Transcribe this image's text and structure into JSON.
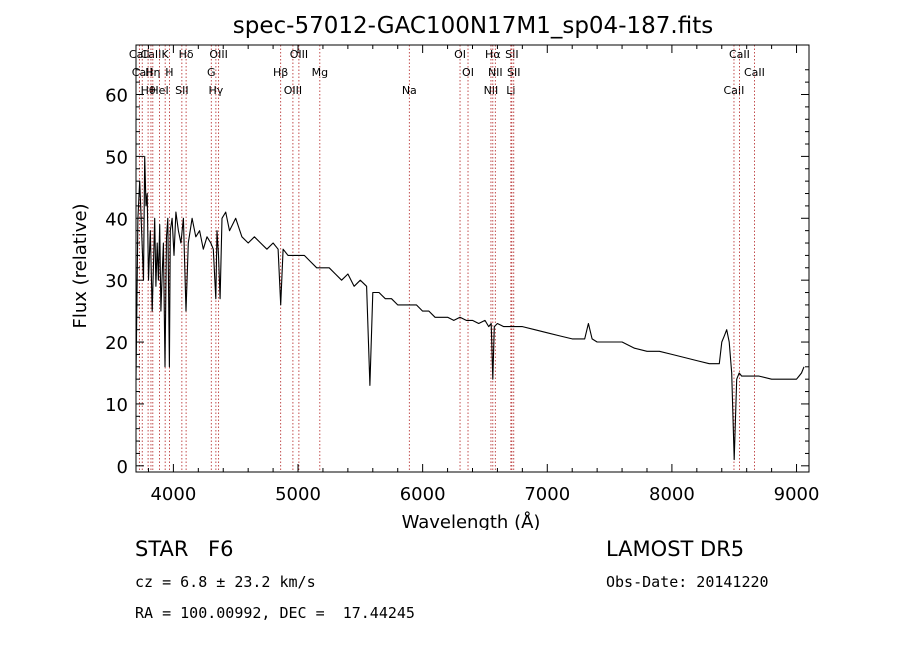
{
  "chart_data": {
    "type": "line",
    "title": "spec-57012-GAC100N17M1_sp04-187.fits",
    "xlabel": "Wavelength (Å)",
    "ylabel": "Flux (relative)",
    "xlim": [
      3700,
      9100
    ],
    "ylim": [
      -1,
      68
    ],
    "xticks": [
      4000,
      5000,
      6000,
      7000,
      8000,
      9000
    ],
    "xtick_labels": [
      "4000",
      "5000",
      "6000",
      "7000",
      "8000",
      "9000"
    ],
    "yticks": [
      0,
      10,
      20,
      30,
      40,
      50,
      60
    ],
    "ytick_labels": [
      "0",
      "10",
      "20",
      "30",
      "40",
      "50",
      "60"
    ],
    "series": [
      {
        "x": [
          3700,
          3715,
          3730,
          3745,
          3760,
          3770,
          3780,
          3790,
          3800,
          3815,
          3830,
          3840,
          3850,
          3860,
          3870,
          3880,
          3890,
          3900,
          3910,
          3920,
          3933,
          3945,
          3955,
          3968,
          3975,
          3990,
          4005,
          4020,
          4040,
          4060,
          4080,
          4101,
          4120,
          4150,
          4180,
          4210,
          4240,
          4270,
          4300,
          4320,
          4340,
          4350,
          4362,
          4375,
          4390,
          4420,
          4450,
          4500,
          4550,
          4600,
          4650,
          4700,
          4750,
          4800,
          4840,
          4861,
          4880,
          4920,
          4960,
          5000,
          5050,
          5100,
          5150,
          5200,
          5250,
          5300,
          5350,
          5400,
          5450,
          5500,
          5550,
          5577,
          5600,
          5650,
          5700,
          5750,
          5800,
          5850,
          5890,
          5950,
          6000,
          6050,
          6100,
          6150,
          6200,
          6250,
          6300,
          6350,
          6400,
          6450,
          6500,
          6530,
          6550,
          6563,
          6575,
          6600,
          6650,
          6700,
          6750,
          6800,
          6900,
          7000,
          7100,
          7200,
          7300,
          7330,
          7360,
          7400,
          7500,
          7600,
          7700,
          7800,
          7900,
          8000,
          8100,
          8200,
          8300,
          8380,
          8400,
          8420,
          8440,
          8460,
          8480,
          8500,
          8520,
          8540,
          8560,
          8600,
          8700,
          8800,
          8900,
          9000,
          9020,
          9040,
          9060
        ],
        "y": [
          14,
          40,
          46,
          38,
          30,
          50,
          42,
          44,
          30,
          38,
          25,
          32,
          40,
          29,
          36,
          30,
          39,
          25,
          31,
          36,
          16,
          37,
          40,
          16,
          38,
          40,
          34,
          41,
          38,
          36,
          40,
          25,
          36,
          40,
          37,
          38,
          35,
          37,
          36,
          35,
          27,
          38,
          34,
          27,
          40,
          41,
          38,
          40,
          37,
          36,
          37,
          36,
          35,
          36,
          35,
          26,
          35,
          34,
          34,
          34,
          34,
          33,
          32,
          32,
          32,
          31,
          30,
          31,
          29,
          30,
          29,
          13,
          28,
          28,
          27,
          27,
          26,
          26,
          26,
          26,
          25,
          25,
          24,
          24,
          24,
          23.5,
          24,
          23.5,
          23.5,
          23,
          23.5,
          22.5,
          23,
          14,
          22.5,
          23,
          22.5,
          22.5,
          22.5,
          22.5,
          22,
          21.5,
          21,
          20.5,
          20.5,
          23,
          20.5,
          20,
          20,
          20,
          19,
          18.5,
          18.5,
          18,
          17.5,
          17,
          16.5,
          16.5,
          20,
          21,
          22,
          20,
          15,
          1,
          14,
          15,
          14.5,
          14.5,
          14.5,
          14,
          14,
          14,
          14.5,
          15,
          16
        ]
      }
    ],
    "line_markers": [
      {
        "label": "CaII",
        "x": 3727
      },
      {
        "label": "CaII",
        "x": 3750
      },
      {
        "label": "Hθ",
        "x": 3797
      },
      {
        "label": "CaII",
        "x": 3820
      },
      {
        "label": "Hη",
        "x": 3835
      },
      {
        "label": "HeI",
        "x": 3889
      },
      {
        "label": "K",
        "x": 3934
      },
      {
        "label": "H",
        "x": 3968
      },
      {
        "label": "SII",
        "x": 4068
      },
      {
        "label": "Hδ",
        "x": 4102
      },
      {
        "label": "G",
        "x": 4304
      },
      {
        "label": "Hγ",
        "x": 4341
      },
      {
        "label": "OIII",
        "x": 4363
      },
      {
        "label": "Hβ",
        "x": 4861
      },
      {
        "label": "OIII",
        "x": 4959
      },
      {
        "label": "OIII",
        "x": 5007
      },
      {
        "label": "Mg",
        "x": 5175
      },
      {
        "label": "Na",
        "x": 5893
      },
      {
        "label": "OI",
        "x": 6300
      },
      {
        "label": "OI",
        "x": 6364
      },
      {
        "label": "NII",
        "x": 6548
      },
      {
        "label": "Hα",
        "x": 6563
      },
      {
        "label": "NII",
        "x": 6583
      },
      {
        "label": "Li",
        "x": 6708
      },
      {
        "label": "SII",
        "x": 6716
      },
      {
        "label": "SII",
        "x": 6731
      },
      {
        "label": "CaII",
        "x": 8498
      },
      {
        "label": "CaII",
        "x": 8542
      },
      {
        "label": "CaII",
        "x": 8662
      }
    ]
  },
  "info": {
    "object_class": "STAR",
    "subclass": "F6",
    "survey": "LAMOST DR5",
    "cz": "cz = 6.8 ± 23.2 km/s",
    "obs_date": "Obs-Date: 20141220",
    "coords": "RA = 100.00992, DEC =  17.44245"
  }
}
